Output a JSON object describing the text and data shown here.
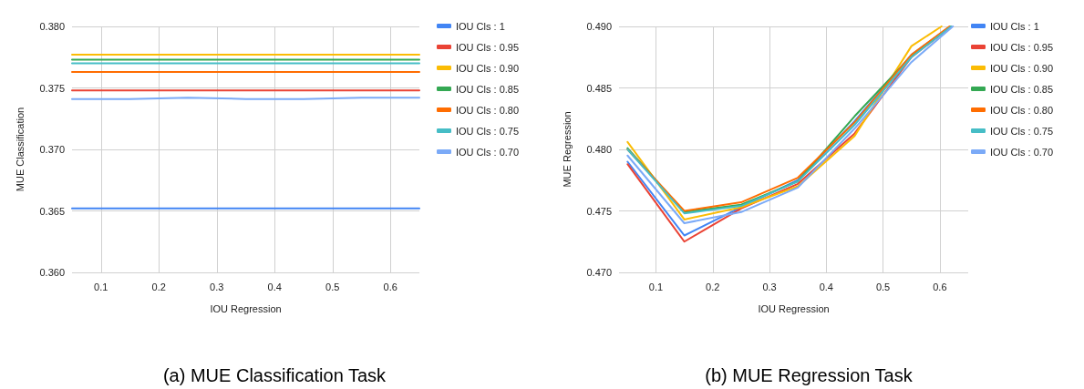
{
  "chart_data": [
    {
      "type": "line",
      "title": "(a) MUE Classification Task",
      "xlabel": "IOU Regression",
      "ylabel": "MUE Classification",
      "x": [
        0.05,
        0.15,
        0.25,
        0.35,
        0.45,
        0.55,
        0.65
      ],
      "xlim": [
        0.05,
        0.65
      ],
      "xticks": [
        0.1,
        0.2,
        0.3,
        0.4,
        0.5,
        0.6
      ],
      "ylim": [
        0.36,
        0.38
      ],
      "yticks": [
        {
          "value": 0.36,
          "label": "0.360"
        },
        {
          "value": 0.365,
          "label": "0.365"
        },
        {
          "value": 0.37,
          "label": "0.370"
        },
        {
          "value": 0.375,
          "label": "0.375"
        },
        {
          "value": 0.38,
          "label": "0.380"
        }
      ],
      "grid": true,
      "legend": "top right",
      "marker": "none",
      "line_style": "solid",
      "series": [
        {
          "name": "IOU Cls : 1",
          "color": "#4285f4",
          "values": [
            0.3652,
            0.3652,
            0.3652,
            0.3652,
            0.3652,
            0.3652,
            0.3652
          ]
        },
        {
          "name": "IOU Cls : 0.95",
          "color": "#ea4335",
          "values": [
            0.3748,
            0.3748,
            0.3748,
            0.3748,
            0.3748,
            0.3748,
            0.3748
          ]
        },
        {
          "name": "IOU Cls : 0.90",
          "color": "#fbbc04",
          "values": [
            0.3777,
            0.3777,
            0.3777,
            0.3777,
            0.3777,
            0.3777,
            0.3777
          ]
        },
        {
          "name": "IOU Cls : 0.85",
          "color": "#34a853",
          "values": [
            0.3773,
            0.3773,
            0.3773,
            0.3773,
            0.3773,
            0.3773,
            0.3773
          ]
        },
        {
          "name": "IOU Cls : 0.80",
          "color": "#ff6d01",
          "values": [
            0.3763,
            0.3763,
            0.3763,
            0.3763,
            0.3763,
            0.3763,
            0.3763
          ]
        },
        {
          "name": "IOU Cls : 0.75",
          "color": "#46bdc6",
          "values": [
            0.377,
            0.377,
            0.377,
            0.377,
            0.377,
            0.377,
            0.377
          ]
        },
        {
          "name": "IOU Cls : 0.70",
          "color": "#7baaf7",
          "values": [
            0.3741,
            0.3741,
            0.3742,
            0.3741,
            0.3741,
            0.3742,
            0.3742
          ]
        }
      ]
    },
    {
      "type": "line",
      "title": "(b) MUE Regression Task",
      "xlabel": "IOU Regression",
      "ylabel": "MUE Regression",
      "xlim": [
        0.035,
        0.65
      ],
      "xticks": [
        0.1,
        0.2,
        0.3,
        0.4,
        0.5,
        0.6
      ],
      "ylim": [
        0.47,
        0.49
      ],
      "yticks": [
        {
          "value": 0.47,
          "label": "0.470"
        },
        {
          "value": 0.475,
          "label": "0.475"
        },
        {
          "value": 0.48,
          "label": "0.480"
        },
        {
          "value": 0.485,
          "label": "0.485"
        },
        {
          "value": 0.49,
          "label": "0.490"
        }
      ],
      "grid": true,
      "legend": "top right",
      "marker": "none",
      "line_style": "solid",
      "series": [
        {
          "name": "IOU Cls : 1",
          "color": "#4285f4",
          "x": [
            0.05,
            0.15,
            0.25,
            0.35,
            0.45,
            0.55,
            0.618
          ],
          "values": [
            0.479,
            0.473,
            0.4753,
            0.4775,
            0.4823,
            0.4877,
            0.49
          ]
        },
        {
          "name": "IOU Cls : 0.95",
          "color": "#ea4335",
          "x": [
            0.05,
            0.15,
            0.25,
            0.35,
            0.45,
            0.55,
            0.62
          ],
          "values": [
            0.4788,
            0.4725,
            0.4752,
            0.4772,
            0.4813,
            0.4875,
            0.49
          ]
        },
        {
          "name": "IOU Cls : 0.90",
          "color": "#fbbc04",
          "x": [
            0.05,
            0.15,
            0.25,
            0.35,
            0.45,
            0.55,
            0.603
          ],
          "values": [
            0.4806,
            0.4743,
            0.4753,
            0.477,
            0.4811,
            0.4884,
            0.49
          ]
        },
        {
          "name": "IOU Cls : 0.85",
          "color": "#34a853",
          "x": [
            0.05,
            0.15,
            0.25,
            0.35,
            0.45,
            0.55,
            0.62
          ],
          "values": [
            0.4801,
            0.4749,
            0.4755,
            0.4774,
            0.4827,
            0.4876,
            0.49
          ]
        },
        {
          "name": "IOU Cls : 0.80",
          "color": "#ff6d01",
          "x": [
            0.05,
            0.15,
            0.25,
            0.35,
            0.45,
            0.55,
            0.617
          ],
          "values": [
            0.48,
            0.475,
            0.4757,
            0.4777,
            0.4822,
            0.4877,
            0.49
          ]
        },
        {
          "name": "IOU Cls : 0.75",
          "color": "#46bdc6",
          "x": [
            0.05,
            0.15,
            0.25,
            0.35,
            0.45,
            0.55,
            0.62
          ],
          "values": [
            0.48,
            0.4748,
            0.4754,
            0.4774,
            0.482,
            0.4875,
            0.49
          ]
        },
        {
          "name": "IOU Cls : 0.70",
          "color": "#7baaf7",
          "x": [
            0.05,
            0.15,
            0.25,
            0.35,
            0.45,
            0.55,
            0.623
          ],
          "values": [
            0.4795,
            0.474,
            0.4749,
            0.4769,
            0.4817,
            0.4871,
            0.49
          ]
        }
      ]
    }
  ]
}
